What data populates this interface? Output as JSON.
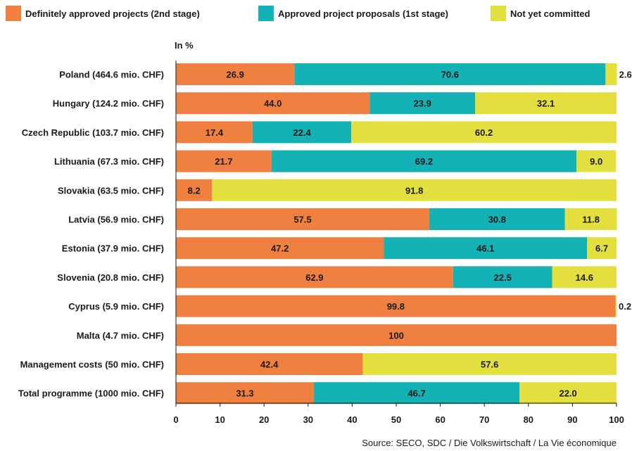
{
  "chart_data": {
    "type": "bar",
    "orientation": "horizontal",
    "stacked": true,
    "unit_label": "In %",
    "xlim": [
      0,
      100
    ],
    "xticks": [
      0,
      10,
      20,
      30,
      40,
      50,
      60,
      70,
      80,
      90,
      100
    ],
    "grid": false,
    "legend_position": "top",
    "categories": [
      "Poland (464.6 mio. CHF)",
      "Hungary (124.2 mio. CHF)",
      "Czech Republic (103.7 mio. CHF)",
      "Lithuania (67.3 mio. CHF)",
      "Slovakia (63.5 mio. CHF)",
      "Latvia (56.9 mio. CHF)",
      "Estonia (37.9 mio. CHF)",
      "Slovenia (20.8 mio. CHF)",
      "Cyprus (5.9 mio. CHF)",
      "Malta (4.7 mio. CHF)",
      "Management costs (50 mio. CHF)",
      "Total programme (1000 mio. CHF)"
    ],
    "series": [
      {
        "name": "Definitely approved projects (2nd stage)",
        "color": "#f08040",
        "values": [
          26.9,
          44.0,
          17.4,
          21.7,
          8.2,
          57.5,
          47.2,
          62.9,
          99.8,
          100,
          42.4,
          31.3
        ],
        "labels": [
          "26.9",
          "44.0",
          "17.4",
          "21.7",
          "8.2",
          "57.5",
          "47.2",
          "62.9",
          "99.8",
          "100",
          "42.4",
          "31.3"
        ]
      },
      {
        "name": "Approved project proposals (1st stage)",
        "color": "#14b1b5",
        "values": [
          70.6,
          23.9,
          22.4,
          69.2,
          0,
          30.8,
          46.1,
          22.5,
          0,
          0,
          0,
          46.7
        ],
        "labels": [
          "70.6",
          "23.9",
          "22.4",
          "69.2",
          "",
          "30.8",
          "46.1",
          "22.5",
          "",
          "",
          "",
          "46.7"
        ]
      },
      {
        "name": "Not yet committed",
        "color": "#e3df3f",
        "values": [
          2.6,
          32.1,
          60.2,
          9.0,
          91.8,
          11.8,
          6.7,
          14.6,
          0.2,
          0,
          57.6,
          22.0
        ],
        "labels": [
          "2.6",
          "32.1",
          "60.2",
          "9.0",
          "91.8",
          "11.8",
          "6.7",
          "14.6",
          "0.2",
          "",
          "57.6",
          "22.0"
        ]
      }
    ],
    "source": "Source: SECO, SDC / Die Volkswirtschaft  /  La Vie économique"
  }
}
